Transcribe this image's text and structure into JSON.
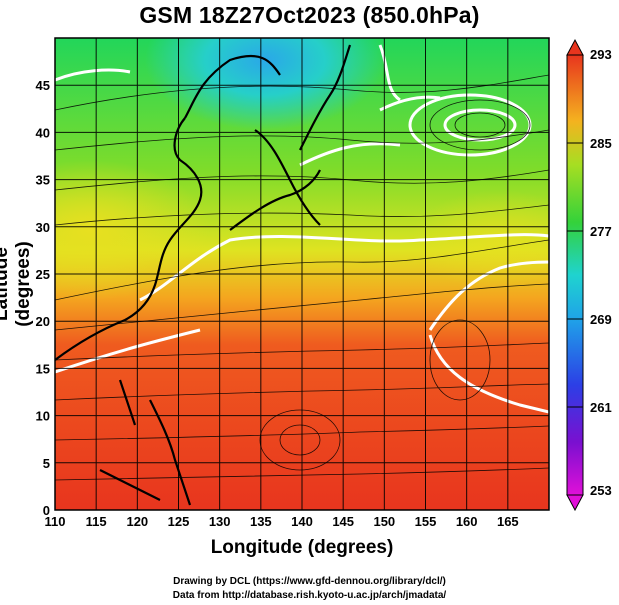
{
  "title": "GSM 18Z27Oct2023 (850.0hPa)",
  "chart_data": {
    "type": "heatmap",
    "title": "GSM 18Z27Oct2023 (850.0hPa)",
    "xlabel": "Longitude (degrees)",
    "ylabel": "Latitude  (degrees)",
    "xlim": [
      110,
      170
    ],
    "ylim": [
      0,
      50
    ],
    "x_ticks": [
      "110",
      "115",
      "120",
      "125",
      "130",
      "135",
      "140",
      "145",
      "150",
      "155",
      "160",
      "165"
    ],
    "y_ticks": [
      "0",
      "5",
      "10",
      "15",
      "20",
      "25",
      "30",
      "35",
      "40",
      "45"
    ],
    "colorbar_ticks": [
      "293",
      "285",
      "277",
      "269",
      "261",
      "253"
    ],
    "colorbar_range": [
      253,
      293
    ],
    "grid": true,
    "layers": [
      "temperature shading",
      "streamlines",
      "white isotherm contours",
      "coastlines"
    ]
  },
  "credits": {
    "line1": "Drawing by DCL (https://www.gfd-dennou.org/library/dcl/)",
    "line2": "Data from http://database.rish.kyoto-u.ac.jp/arch/jmadata/"
  },
  "colors": {
    "warm": "#e8351e",
    "orange": "#f47a1f",
    "yellow": "#e8e020",
    "green": "#34d23a",
    "cyan": "#1fd3cf",
    "blue": "#2c3fe6",
    "magenta": "#e010d8"
  }
}
